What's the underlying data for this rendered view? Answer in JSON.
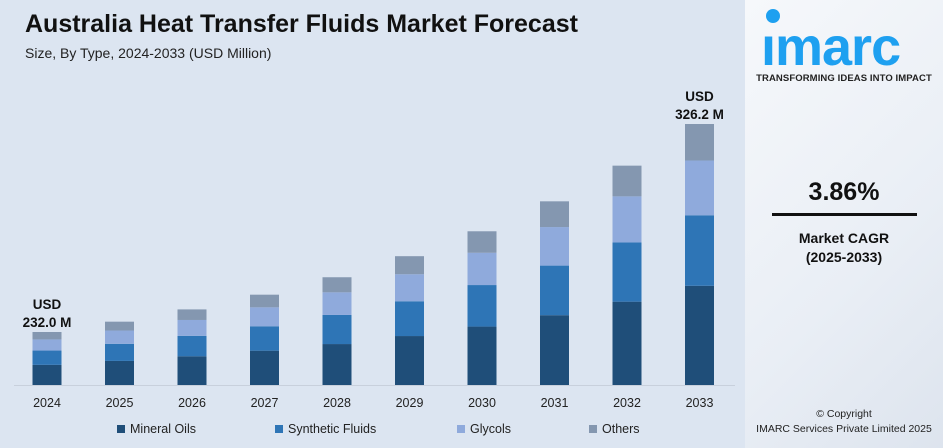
{
  "colors": {
    "mineral_oils": "#1f4e79",
    "synthetic_fluids": "#2e75b6",
    "glycols": "#8faadc",
    "others": "#8497b0",
    "accent": "#1ea0f0"
  },
  "chart_data": {
    "type": "bar",
    "stacked": true,
    "title": "Australia Heat Transfer Fluids Market Forecast",
    "subtitle": "Size, By Type, 2024-2033 (USD Million)",
    "categories": [
      "2024",
      "2025",
      "2026",
      "2027",
      "2028",
      "2029",
      "2030",
      "2031",
      "2032",
      "2033"
    ],
    "series": [
      {
        "name": "Mineral Oils",
        "values": [
          88.2,
          91.6,
          95.1,
          98.8,
          102.6,
          106.6,
          110.7,
          115.0,
          119.4,
          124.0
        ]
      },
      {
        "name": "Synthetic Fluids",
        "values": [
          62.6,
          65.1,
          67.6,
          70.2,
          72.9,
          75.7,
          78.7,
          81.7,
          84.9,
          88.1
        ]
      },
      {
        "name": "Glycols",
        "values": [
          48.7,
          50.6,
          52.6,
          54.6,
          56.7,
          58.9,
          61.2,
          63.5,
          66.0,
          68.5
        ]
      },
      {
        "name": "Others",
        "values": [
          32.5,
          33.7,
          35.0,
          36.4,
          37.8,
          39.3,
          40.7,
          42.4,
          44.0,
          45.6
        ]
      }
    ],
    "annotations": [
      {
        "category": "2024",
        "line1": "USD",
        "line2": "232.0 M"
      },
      {
        "category": "2033",
        "line1": "USD",
        "line2": "326.2 M"
      }
    ],
    "legend_position": "bottom",
    "grid": false
  },
  "brand": {
    "logo": "imarc",
    "tagline": "TRANSFORMING IDEAS INTO IMPACT"
  },
  "cagr": {
    "value": "3.86%",
    "label": "Market CAGR",
    "period": "(2025-2033)"
  },
  "copyright": {
    "line1": "© Copyright",
    "line2": "IMARC Services Private Limited 2025"
  }
}
